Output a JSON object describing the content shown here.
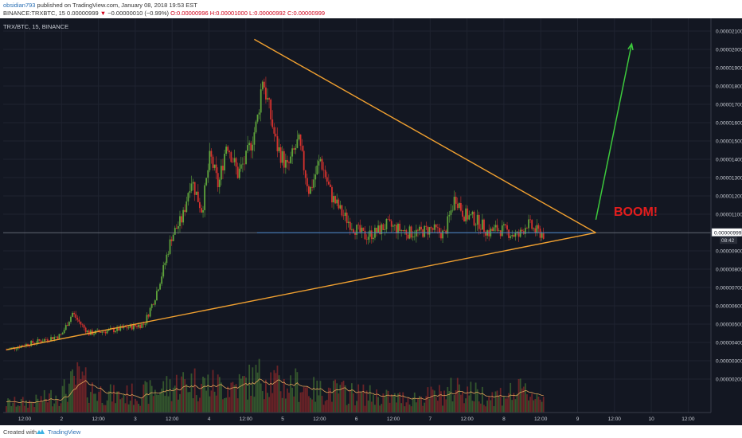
{
  "header": {
    "author": "obsidian793",
    "published": "published on TradingView.com, January 08, 2018 19:53 EST",
    "symbol": "BINANCE:TRXBTC, 15",
    "last": "0.00000999",
    "change_arrow": "▼",
    "change": "−0.00000010 (−0.99%)",
    "open_label": "O:",
    "open": "0.00000996",
    "high_label": "H:",
    "high": "0.00001000",
    "low_label": "L:",
    "low": "0.00000992",
    "close_label": "C:",
    "close": "0.00000999"
  },
  "chart_data": {
    "type": "candlestick",
    "title": "TRX/BTC, 15, BINANCE",
    "annotation_text": "BOOM!",
    "y_ticks": [
      "0.00002100",
      "0.00002000",
      "0.00001900",
      "0.00001800",
      "0.00001700",
      "0.00001600",
      "0.00001500",
      "0.00001400",
      "0.00001300",
      "0.00001200",
      "0.00001100",
      "0.00001000",
      "0.00000900",
      "0.00000800",
      "0.00000700",
      "0.00000600",
      "0.00000500",
      "0.00000400",
      "0.00000300",
      "0.00000200"
    ],
    "y_range": [
      1.5e-06,
      2.15e-05
    ],
    "x_ticks": [
      "12:00",
      "2",
      "12:00",
      "3",
      "12:00",
      "4",
      "12:00",
      "5",
      "12:00",
      "6",
      "12:00",
      "7",
      "12:00",
      "8",
      "12:00",
      "9",
      "12:00",
      "10",
      "12:00"
    ],
    "current_price_label": "0.00000999",
    "countdown_label": "08:42",
    "price_path": [
      [
        0,
        3.6e-06
      ],
      [
        0.5,
        4e-06
      ],
      [
        1,
        4.4e-06
      ],
      [
        1.2,
        5.6e-06
      ],
      [
        1.35,
        5e-06
      ],
      [
        1.5,
        4.5e-06
      ],
      [
        2,
        4.7e-06
      ],
      [
        2.5,
        5e-06
      ],
      [
        2.7,
        6.5e-06
      ],
      [
        2.85,
        8e-06
      ],
      [
        3,
        9.8e-06
      ],
      [
        3.2,
        1.08e-05
      ],
      [
        3.35,
        1.3e-05
      ],
      [
        3.55,
        1.12e-05
      ],
      [
        3.7,
        1.42e-05
      ],
      [
        3.85,
        1.25e-05
      ],
      [
        4.0,
        1.5e-05
      ],
      [
        4.2,
        1.32e-05
      ],
      [
        4.35,
        1.4e-05
      ],
      [
        4.55,
        1.6e-05
      ],
      [
        4.65,
        1.85e-05
      ],
      [
        4.75,
        1.7e-05
      ],
      [
        4.9,
        1.48e-05
      ],
      [
        5.1,
        1.35e-05
      ],
      [
        5.3,
        1.5e-05
      ],
      [
        5.5,
        1.22e-05
      ],
      [
        5.7,
        1.4e-05
      ],
      [
        5.9,
        1.2e-05
      ],
      [
        6.1,
        1.1e-05
      ],
      [
        6.3,
        1.03e-05
      ],
      [
        6.5,
        9.8e-06
      ],
      [
        6.7,
        1e-05
      ],
      [
        6.9,
        1.04e-05
      ],
      [
        7.1,
        1.02e-05
      ],
      [
        7.3,
        1e-05
      ],
      [
        7.5,
        1e-05
      ],
      [
        7.7,
        1.02e-05
      ],
      [
        7.95,
        9.9e-06
      ],
      [
        8.15,
        1.2e-05
      ],
      [
        8.3,
        1.1e-05
      ],
      [
        8.45,
        1.08e-05
      ],
      [
        8.6,
        1.05e-05
      ],
      [
        8.75,
        1e-05
      ],
      [
        8.9,
        1.02e-05
      ],
      [
        9.05,
        1.01e-05
      ],
      [
        9.2,
        9.9e-06
      ],
      [
        9.3,
        9.8e-06
      ],
      [
        9.45,
        1.05e-05
      ],
      [
        9.6,
        1.01e-05
      ],
      [
        9.75,
        9.9e-06
      ]
    ],
    "volume_profile": [
      [
        0,
        0.2
      ],
      [
        0.5,
        0.22
      ],
      [
        1,
        0.4
      ],
      [
        1.3,
        0.7
      ],
      [
        1.6,
        0.45
      ],
      [
        2,
        0.35
      ],
      [
        2.5,
        0.4
      ],
      [
        3,
        0.55
      ],
      [
        3.3,
        0.65
      ],
      [
        3.6,
        0.6
      ],
      [
        4,
        0.55
      ],
      [
        4.3,
        0.6
      ],
      [
        4.7,
        0.8
      ],
      [
        5,
        0.55
      ],
      [
        5.3,
        0.6
      ],
      [
        5.6,
        0.45
      ],
      [
        6,
        0.45
      ],
      [
        6.3,
        0.4
      ],
      [
        6.7,
        0.35
      ],
      [
        7,
        0.3
      ],
      [
        7.3,
        0.3
      ],
      [
        7.7,
        0.35
      ],
      [
        8,
        0.4
      ],
      [
        8.2,
        0.55
      ],
      [
        8.5,
        0.4
      ],
      [
        8.8,
        0.35
      ],
      [
        9.1,
        0.4
      ],
      [
        9.4,
        0.45
      ],
      [
        9.75,
        0.3
      ]
    ],
    "trendlines": {
      "upper": [
        [
          4.5,
          2.055e-05
        ],
        [
          10.7,
          9.99e-06
        ]
      ],
      "lower": [
        [
          0,
          3.6e-06
        ],
        [
          10.7,
          9.99e-06
        ]
      ],
      "support": [
        [
          4.55,
          9.99e-06
        ],
        [
          10.7,
          9.99e-06
        ]
      ],
      "projection": [
        [
          10.7,
          1.07e-05
        ],
        [
          11.35,
          2.03e-05
        ]
      ]
    }
  },
  "footer": {
    "created_with": "Created with",
    "brand": "TradingView"
  }
}
